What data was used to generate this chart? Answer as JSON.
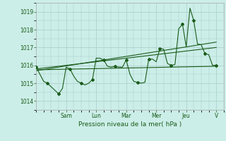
{
  "background_color": "#cceee8",
  "grid_color": "#aacccc",
  "line_color": "#1a5c1a",
  "xlabel": "Pression niveau de la mer( hPa )",
  "ylim": [
    1013.5,
    1019.5
  ],
  "yticks": [
    1014,
    1015,
    1016,
    1017,
    1018,
    1019
  ],
  "day_labels": [
    "Sam",
    "Lun",
    "Mar",
    "Mer",
    "Jeu",
    "V"
  ],
  "day_tick_x": [
    8,
    16,
    24,
    32,
    40,
    48
  ],
  "xlim": [
    0,
    50
  ],
  "series1_x": [
    0,
    1,
    2,
    3,
    4,
    5,
    6,
    7,
    8,
    9,
    10,
    11,
    12,
    13,
    14,
    15,
    16,
    17,
    18,
    19,
    20,
    21,
    22,
    23,
    24,
    25,
    26,
    27,
    28,
    29,
    30,
    31,
    32,
    33,
    34,
    35,
    36,
    37,
    38,
    39,
    40,
    41,
    42,
    43,
    44,
    45,
    46,
    47,
    48
  ],
  "series1_y": [
    1015.9,
    1015.5,
    1015.1,
    1015.0,
    1014.8,
    1014.6,
    1014.4,
    1014.7,
    1015.9,
    1015.8,
    1015.4,
    1015.1,
    1015.0,
    1014.9,
    1015.0,
    1015.2,
    1016.4,
    1016.4,
    1016.3,
    1015.95,
    1015.9,
    1015.95,
    1015.9,
    1015.9,
    1016.3,
    1015.5,
    1015.1,
    1015.05,
    1015.0,
    1015.05,
    1016.35,
    1016.35,
    1016.2,
    1016.95,
    1016.9,
    1016.1,
    1016.0,
    1016.05,
    1018.05,
    1018.3,
    1017.05,
    1019.2,
    1018.5,
    1017.2,
    1017.15,
    1016.65,
    1016.6,
    1016.0,
    1016.0
  ],
  "line2_x": [
    0,
    48
  ],
  "line2_y": [
    1015.75,
    1015.95
  ],
  "line3_x": [
    0,
    48
  ],
  "line3_y": [
    1015.7,
    1017.3
  ],
  "line4_x": [
    0,
    48
  ],
  "line4_y": [
    1015.8,
    1017.0
  ]
}
